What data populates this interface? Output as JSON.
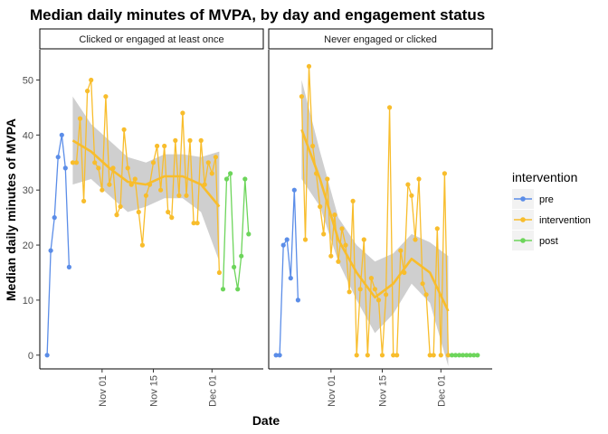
{
  "chart_data": {
    "type": "line",
    "title": "Median daily minutes of MVPA, by day and engagement status",
    "xlabel": "Date",
    "ylabel": "Median daily minutes of MVPA",
    "x_type": "date",
    "xlim": [
      "2018-10-15",
      "2018-12-15"
    ],
    "ylim": [
      -2.5,
      55.5
    ],
    "yticks": [
      0,
      10,
      20,
      30,
      40,
      50
    ],
    "xticks": [
      {
        "date": "2018-11-01",
        "label": "Nov 01"
      },
      {
        "date": "2018-11-15",
        "label": "Nov 15"
      },
      {
        "date": "2018-12-01",
        "label": "Dec 01"
      }
    ],
    "grid": false,
    "legend": {
      "title": "intervention",
      "position": "right"
    },
    "colors": {
      "pre": "#5b8de8",
      "intervention": "#f8bd2c",
      "post": "#6dd55b",
      "ribbon": "#bfbfbf",
      "smooth": "#f8bd2c"
    },
    "series_names": [
      "pre",
      "intervention",
      "post"
    ],
    "panels": [
      {
        "strip": "Clicked or engaged at least once",
        "series": {
          "pre": [
            [
              "2018-10-17",
              0
            ],
            [
              "2018-10-18",
              19
            ],
            [
              "2018-10-19",
              25
            ],
            [
              "2018-10-20",
              36
            ],
            [
              "2018-10-21",
              40
            ],
            [
              "2018-10-22",
              34
            ],
            [
              "2018-10-23",
              16
            ]
          ],
          "intervention": [
            [
              "2018-10-24",
              35
            ],
            [
              "2018-10-25",
              35
            ],
            [
              "2018-10-26",
              43
            ],
            [
              "2018-10-27",
              28
            ],
            [
              "2018-10-28",
              48
            ],
            [
              "2018-10-29",
              50
            ],
            [
              "2018-10-30",
              35
            ],
            [
              "2018-10-31",
              34
            ],
            [
              "2018-11-01",
              30
            ],
            [
              "2018-11-02",
              47
            ],
            [
              "2018-11-03",
              31
            ],
            [
              "2018-11-04",
              34
            ],
            [
              "2018-11-05",
              25.5
            ],
            [
              "2018-11-06",
              27
            ],
            [
              "2018-11-07",
              41
            ],
            [
              "2018-11-08",
              34
            ],
            [
              "2018-11-09",
              31
            ],
            [
              "2018-11-10",
              32
            ],
            [
              "2018-11-11",
              26
            ],
            [
              "2018-11-12",
              20
            ],
            [
              "2018-11-13",
              29
            ],
            [
              "2018-11-14",
              31
            ],
            [
              "2018-11-15",
              35
            ],
            [
              "2018-11-16",
              38
            ],
            [
              "2018-11-17",
              30
            ],
            [
              "2018-11-18",
              38
            ],
            [
              "2018-11-19",
              26
            ],
            [
              "2018-11-20",
              25
            ],
            [
              "2018-11-21",
              39
            ],
            [
              "2018-11-22",
              29
            ],
            [
              "2018-11-23",
              44
            ],
            [
              "2018-11-24",
              29
            ],
            [
              "2018-11-25",
              39
            ],
            [
              "2018-11-26",
              24
            ],
            [
              "2018-11-27",
              24
            ],
            [
              "2018-11-28",
              39
            ],
            [
              "2018-11-29",
              31
            ],
            [
              "2018-11-30",
              35
            ],
            [
              "2018-12-01",
              33
            ],
            [
              "2018-12-02",
              36
            ],
            [
              "2018-12-03",
              15
            ]
          ],
          "post": [
            [
              "2018-12-04",
              12
            ],
            [
              "2018-12-05",
              32
            ],
            [
              "2018-12-06",
              33
            ],
            [
              "2018-12-07",
              16
            ],
            [
              "2018-12-08",
              12
            ],
            [
              "2018-12-09",
              18
            ],
            [
              "2018-12-10",
              32
            ],
            [
              "2018-12-11",
              22
            ]
          ]
        },
        "smooth": {
          "x": [
            "2018-10-24",
            "2018-10-29",
            "2018-11-03",
            "2018-11-08",
            "2018-11-13",
            "2018-11-18",
            "2018-11-23",
            "2018-11-28",
            "2018-12-03"
          ],
          "y": [
            39,
            37,
            34,
            31.5,
            31,
            32.5,
            32.5,
            31,
            27
          ],
          "lower": [
            31,
            32,
            29,
            26,
            27,
            28.5,
            28.5,
            26,
            17
          ],
          "upper": [
            47,
            42,
            39,
            36,
            35,
            36.5,
            36.5,
            36,
            37
          ]
        }
      },
      {
        "strip": "Never engaged or clicked",
        "series": {
          "pre": [
            [
              "2018-10-17",
              0
            ],
            [
              "2018-10-18",
              0
            ],
            [
              "2018-10-19",
              20
            ],
            [
              "2018-10-20",
              21
            ],
            [
              "2018-10-21",
              14
            ],
            [
              "2018-10-22",
              30
            ],
            [
              "2018-10-23",
              10
            ]
          ],
          "intervention": [
            [
              "2018-10-24",
              47
            ],
            [
              "2018-10-25",
              21
            ],
            [
              "2018-10-26",
              52.5
            ],
            [
              "2018-10-27",
              38
            ],
            [
              "2018-10-28",
              33
            ],
            [
              "2018-10-29",
              27
            ],
            [
              "2018-10-30",
              22
            ],
            [
              "2018-10-31",
              32
            ],
            [
              "2018-11-01",
              18
            ],
            [
              "2018-11-02",
              25.5
            ],
            [
              "2018-11-03",
              17
            ],
            [
              "2018-11-04",
              23
            ],
            [
              "2018-11-05",
              20
            ],
            [
              "2018-11-06",
              11.5
            ],
            [
              "2018-11-07",
              28
            ],
            [
              "2018-11-08",
              0
            ],
            [
              "2018-11-09",
              12
            ],
            [
              "2018-11-10",
              21
            ],
            [
              "2018-11-11",
              0
            ],
            [
              "2018-11-12",
              14
            ],
            [
              "2018-11-13",
              12
            ],
            [
              "2018-11-14",
              10
            ],
            [
              "2018-11-15",
              0
            ],
            [
              "2018-11-16",
              11
            ],
            [
              "2018-11-17",
              45
            ],
            [
              "2018-11-18",
              0
            ],
            [
              "2018-11-19",
              0
            ],
            [
              "2018-11-20",
              19
            ],
            [
              "2018-11-21",
              15
            ],
            [
              "2018-11-22",
              31
            ],
            [
              "2018-11-23",
              29
            ],
            [
              "2018-11-24",
              21
            ],
            [
              "2018-11-25",
              32
            ],
            [
              "2018-11-26",
              13
            ],
            [
              "2018-11-27",
              11
            ],
            [
              "2018-11-28",
              0
            ],
            [
              "2018-11-29",
              0
            ],
            [
              "2018-11-30",
              23
            ],
            [
              "2018-12-01",
              0
            ],
            [
              "2018-12-02",
              33
            ],
            [
              "2018-12-03",
              0
            ]
          ],
          "post": [
            [
              "2018-12-04",
              0
            ],
            [
              "2018-12-05",
              0
            ],
            [
              "2018-12-06",
              0
            ],
            [
              "2018-12-07",
              0
            ],
            [
              "2018-12-08",
              0
            ],
            [
              "2018-12-09",
              0
            ],
            [
              "2018-12-10",
              0
            ],
            [
              "2018-12-11",
              0
            ]
          ]
        },
        "smooth": {
          "x": [
            "2018-10-24",
            "2018-10-29",
            "2018-11-03",
            "2018-11-08",
            "2018-11-13",
            "2018-11-18",
            "2018-11-23",
            "2018-11-28",
            "2018-12-03"
          ],
          "y": [
            41,
            32,
            21,
            15,
            10.5,
            13,
            17.5,
            15,
            8
          ],
          "lower": [
            32,
            27,
            17,
            10,
            4,
            7.5,
            13,
            9.5,
            -2
          ],
          "upper": [
            50,
            37,
            25,
            20,
            17,
            18.5,
            22,
            20.5,
            18
          ]
        }
      }
    ]
  }
}
